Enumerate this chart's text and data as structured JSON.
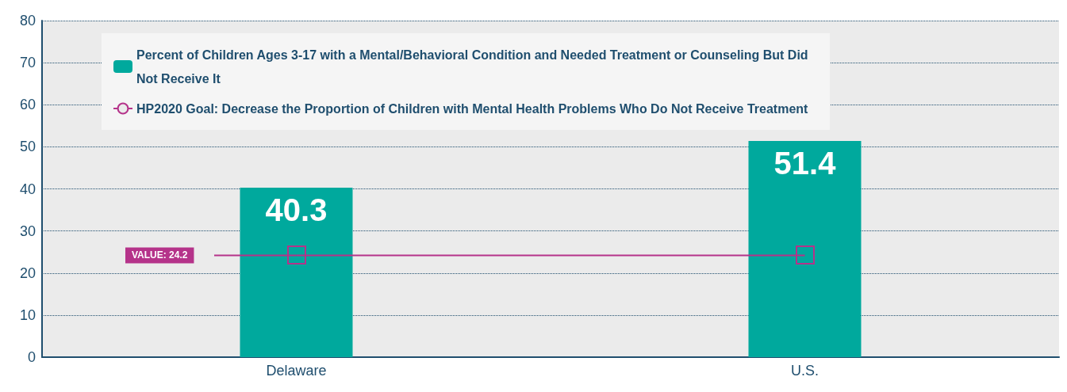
{
  "chart_data": {
    "type": "bar",
    "categories": [
      "Delaware",
      "U.S."
    ],
    "series": [
      {
        "name": "Percent of Children Ages 3-17 with a Mental/Behavioral Condition and Needed Treatment or Counseling But Did Not Receive It",
        "color": "#00a99d",
        "values": [
          40.3,
          51.4
        ]
      }
    ],
    "data_labels": true,
    "ref_lines": [
      {
        "axis": "y",
        "value": 24.2,
        "label": "HP2020 Goal: Decrease the Proportion of Children with Mental Health Problems Who Do Not Receive Treatment",
        "color": "#b5338a",
        "line_style": "solid"
      }
    ],
    "annotations": [
      "VALUE: 24.2"
    ],
    "ylim": [
      0,
      80
    ],
    "yticks": [
      0,
      10,
      20,
      30,
      40,
      50,
      60,
      70,
      80
    ],
    "grid": "y",
    "legend": "top left"
  }
}
